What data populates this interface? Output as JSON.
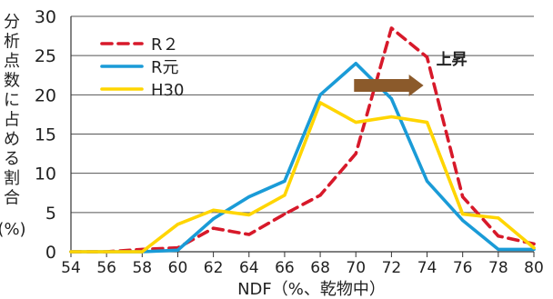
{
  "chart_data": {
    "type": "line",
    "x": [
      54,
      56,
      58,
      60,
      62,
      64,
      66,
      68,
      70,
      72,
      74,
      76,
      78,
      80
    ],
    "x_tick_labels": [
      "54",
      "56",
      "58",
      "60",
      "62",
      "64",
      "66",
      "68",
      "70",
      "72",
      "74",
      "76",
      "78",
      "80"
    ],
    "xlabel": "NDF（%、乾物中）",
    "ylabel": "分析点数に占める割合(%)",
    "ylabel_chars": [
      "分",
      "析",
      "点",
      "数",
      "に",
      "占",
      "め",
      "る",
      "割",
      "合"
    ],
    "ylabel_unit": "(%)",
    "ylim": [
      0,
      30
    ],
    "xlim": [
      54,
      80
    ],
    "y_ticks": [
      0,
      5,
      10,
      15,
      20,
      25,
      30
    ],
    "y_tick_labels": [
      "0",
      "5",
      "10",
      "15",
      "20",
      "25",
      "30"
    ],
    "grid": "horizontal",
    "legend_position": "top-left",
    "series": [
      {
        "name": "R２",
        "color": "#d7192a",
        "dash": "dashed",
        "values": [
          0,
          0,
          0.3,
          0.5,
          3.0,
          2.2,
          4.8,
          7.2,
          12.5,
          28.5,
          24.8,
          7.0,
          2.0,
          1.0
        ]
      },
      {
        "name": "R元",
        "color": "#1a9bd7",
        "dash": "solid",
        "values": [
          0,
          0,
          0,
          0.2,
          4.2,
          7.0,
          9.0,
          20.0,
          24.0,
          19.5,
          9.0,
          4.0,
          0.3,
          0.3
        ]
      },
      {
        "name": "H30",
        "color": "#ffd500",
        "dash": "solid",
        "values": [
          0,
          0,
          0,
          3.5,
          5.3,
          4.7,
          7.2,
          19.0,
          16.5,
          17.2,
          16.5,
          4.8,
          4.3,
          0.5
        ]
      }
    ],
    "annotations": [
      {
        "text": "上昇",
        "type": "arrow",
        "from_x": 69.9,
        "to_x": 73.8,
        "y": 21.2,
        "color": "#8b5a2b"
      }
    ]
  }
}
